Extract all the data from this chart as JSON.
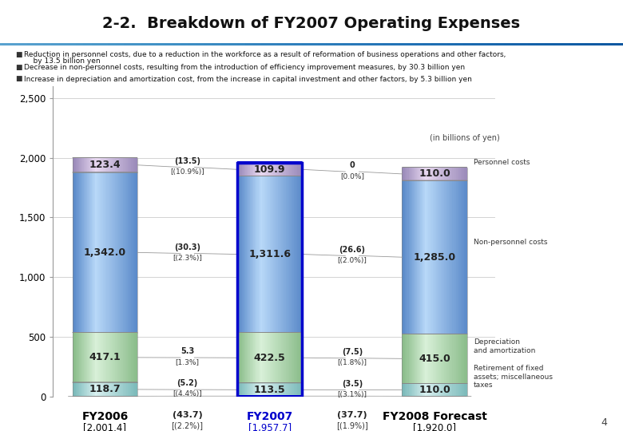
{
  "title": "2-2.  Breakdown of FY2007 Operating Expenses",
  "subtitle_lines": [
    "Reduction in personnel costs, due to a reduction in the workforce as a result of reformation of business operations and other factors,",
    "    by 13.5 billion yen",
    "Decrease in non-personnel costs, resulting from the introduction of efficiency improvement measures, by 30.3 billion yen",
    "Increase in depreciation and amortization cost, from the increase in capital investment and other factors, by 5.3 billion yen"
  ],
  "bullet_lines": [
    [
      "Reduction in personnel costs, due to a reduction in the workforce as a result of reformation of business operations and other factors,",
      "    by 13.5 billion yen"
    ],
    [
      "Decrease in non-personnel costs, resulting from the introduction of efficiency improvement measures, by 30.3 billion yen"
    ],
    [
      "Increase in depreciation and amortization cost, from the increase in capital investment and other factors, by 5.3 billion yen"
    ]
  ],
  "unit_label": "(in billions of yen)",
  "bars": [
    {
      "label": "FY2006",
      "sublabel": "[2,001.4]",
      "label_color": "#000000",
      "segments": [
        118.7,
        417.1,
        1342.0,
        123.4
      ],
      "seg_labels": [
        "118.7",
        "417.1",
        "1,342.0",
        "123.4"
      ],
      "outlined": false
    },
    {
      "label": "FY2007",
      "sublabel": "[1,957.7]",
      "label_color": "#0000cc",
      "segments": [
        113.5,
        422.5,
        1311.6,
        109.9
      ],
      "seg_labels": [
        "113.5",
        "422.5",
        "1,311.6",
        "109.9"
      ],
      "outlined": true
    },
    {
      "label": "FY2008 Forecast",
      "sublabel": "[1,920.0]",
      "label_color": "#000000",
      "segments": [
        110.0,
        415.0,
        1285.0,
        110.0
      ],
      "seg_labels": [
        "110.0",
        "415.0",
        "1,285.0",
        "110.0"
      ],
      "outlined": false
    }
  ],
  "change_cols": [
    {
      "changes": [
        {
          "val": "(5.2)",
          "pct": "[(4.4%)]"
        },
        {
          "val": "5.3",
          "pct": "[1.3%]"
        },
        {
          "val": "(30.3)",
          "pct": "[(2.3%)]"
        },
        {
          "val": "(13.5)",
          "pct": "[(10.9%)]"
        }
      ],
      "total_val": "(43.7)",
      "total_pct": "[(2.2%)]"
    },
    {
      "changes": [
        {
          "val": "(3.5)",
          "pct": "[(3.1%)]"
        },
        {
          "val": "(7.5)",
          "pct": "[(1.8%)]"
        },
        {
          "val": "(26.6)",
          "pct": "[(2.0%)]"
        },
        {
          "val": "0",
          "pct": "[0.0%]"
        }
      ],
      "total_val": "(37.7)",
      "total_pct": "[(1.9%)]"
    }
  ],
  "seg_face_colors": [
    "#a8d8d8",
    "#b8ddb8",
    "#88b8e8",
    "#c8b8d8"
  ],
  "seg_dark_colors": [
    "#78b8b8",
    "#88bb88",
    "#5888c8",
    "#9888b8"
  ],
  "seg_light_colors": [
    "#d8f0f0",
    "#d8f0d8",
    "#b8d8f8",
    "#e8d8f0"
  ],
  "seg_top_colors": [
    "#98cccc",
    "#a8cca8",
    "#78a8d8",
    "#b8a8c8"
  ],
  "ylim": [
    0,
    2500
  ],
  "yticks": [
    0,
    500,
    1000,
    1500,
    2000,
    2500
  ],
  "legend_labels": [
    "Personnel costs",
    "Non-personnel costs",
    "Depreciation\nand amortization",
    "Retirement of fixed\nassets; miscellaneous\ntaxes"
  ],
  "page_number": "4"
}
